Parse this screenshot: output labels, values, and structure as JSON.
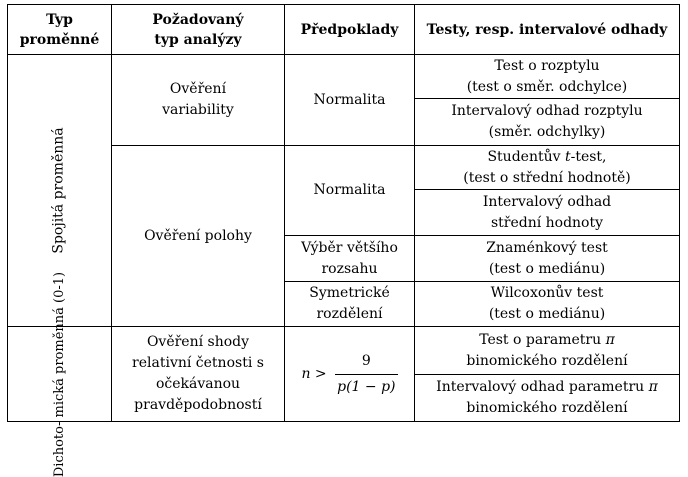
{
  "header": {
    "col1": "Typ\nproměnné",
    "col2": "Požadovaný\ntyp analýzy",
    "col3": "Předpoklady",
    "col4": "Testy, resp. intervalové odhady"
  },
  "groups": {
    "continuous": "Spojitá proměnná",
    "dichotomous": "Dichoto-\nmická\nproměnná\n(0-1)"
  },
  "analysis": {
    "variability": "Ověření\nvariability",
    "location": "Ověření polohy",
    "proportion": "Ověření shody\nrelativní četnosti s\nočekávanou\npravděpodobností"
  },
  "assumptions": {
    "normality_1": "Normalita",
    "normality_2": "Normalita",
    "large_sample": "Výběr většího\nrozsahu",
    "symmetric": "Symetrické\nrozdělení",
    "condition_lhs": "n > ",
    "condition_num": "9",
    "condition_den": "p(1 − p)"
  },
  "tests": {
    "variance_test": "Test o rozptylu\n(test o směr. odchylce)",
    "variance_interval": "Intervalový odhad rozptylu\n(směr. odchylky)",
    "t_test_prefix": "Studentův ",
    "t_test_t": "t",
    "t_test_suffix": "-test,",
    "t_test_sub": "(test o střední hodnotě)",
    "mean_interval": "Intervalový odhad\nstřední hodnoty",
    "sign_test": "Znaménkový test\n(test o mediánu)",
    "wilcoxon_test": "Wilcoxonův test\n(test o mediánu)",
    "param_test_prefix": "Test o parametru ",
    "pi": "π",
    "param_test_sub": "binomického rozdělení",
    "param_interval_prefix": "Intervalový odhad parametru ",
    "param_interval_sub": "binomického rozdělení"
  }
}
